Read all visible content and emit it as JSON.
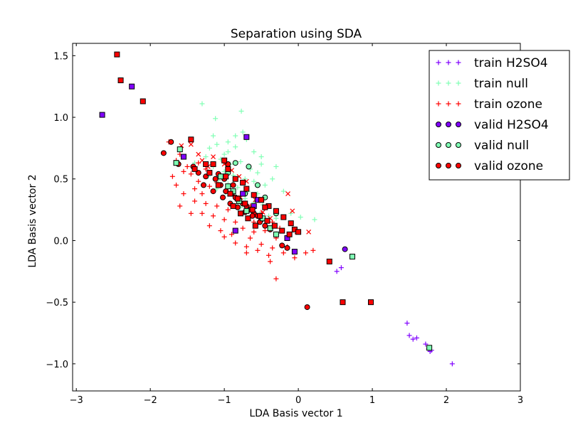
{
  "chart_data": {
    "type": "scatter",
    "title": "Separation using SDA",
    "xlabel": "LDA Basis vector 1",
    "ylabel": "LDA Basis vector 2",
    "xlim": [
      -3.05,
      3.0
    ],
    "ylim": [
      -1.22,
      1.6
    ],
    "xticks": [
      -3,
      -2,
      -1,
      0,
      1,
      2,
      3
    ],
    "xtick_labels": [
      "−3",
      "−2",
      "−1",
      "0",
      "1",
      "2",
      "3"
    ],
    "yticks": [
      -1.0,
      -0.5,
      0.0,
      0.5,
      1.0,
      1.5
    ],
    "ytick_labels": [
      "−1.0",
      "−0.5",
      "0.0",
      "0.5",
      "1.0",
      "1.5"
    ],
    "grid": false,
    "legend_position": "top-right",
    "colors": {
      "h2so4": "#8000ff",
      "null": "#80ffb4",
      "ozone": "#ff0000"
    },
    "series": [
      {
        "name": "train H2SO4",
        "group": "h2so4",
        "marker": "plus",
        "points": [
          [
            0.58,
            -0.22
          ],
          [
            0.52,
            -0.25
          ],
          [
            1.47,
            -0.67
          ],
          [
            1.5,
            -0.77
          ],
          [
            1.55,
            -0.8
          ],
          [
            1.6,
            -0.79
          ],
          [
            1.72,
            -0.84
          ],
          [
            1.76,
            -0.88
          ],
          [
            1.8,
            -0.89
          ],
          [
            1.78,
            -0.9
          ],
          [
            2.08,
            -1.0
          ]
        ]
      },
      {
        "name": "train null",
        "group": "null",
        "marker": "plus",
        "points": [
          [
            -1.3,
            1.11
          ],
          [
            -1.12,
            0.99
          ],
          [
            -0.77,
            1.05
          ],
          [
            -0.75,
            0.88
          ],
          [
            -1.2,
            0.75
          ],
          [
            -1.1,
            0.78
          ],
          [
            -0.95,
            0.72
          ],
          [
            -0.85,
            0.76
          ],
          [
            -0.6,
            0.72
          ],
          [
            -0.5,
            0.68
          ],
          [
            -1.25,
            0.68
          ],
          [
            -1.05,
            0.66
          ],
          [
            -0.92,
            0.62
          ],
          [
            -0.78,
            0.64
          ],
          [
            -0.65,
            0.58
          ],
          [
            -0.55,
            0.55
          ],
          [
            -1.15,
            0.6
          ],
          [
            -1.0,
            0.56
          ],
          [
            -0.88,
            0.53
          ],
          [
            -0.72,
            0.5
          ],
          [
            -0.6,
            0.48
          ],
          [
            -0.45,
            0.45
          ],
          [
            -1.22,
            0.52
          ],
          [
            -1.08,
            0.49
          ],
          [
            -0.95,
            0.46
          ],
          [
            -0.82,
            0.43
          ],
          [
            -0.68,
            0.4
          ],
          [
            -0.55,
            0.38
          ],
          [
            -1.1,
            0.42
          ],
          [
            -0.98,
            0.39
          ],
          [
            -0.85,
            0.36
          ],
          [
            -0.72,
            0.34
          ],
          [
            -0.6,
            0.31
          ],
          [
            -0.48,
            0.29
          ],
          [
            -0.9,
            0.3
          ],
          [
            -0.78,
            0.27
          ],
          [
            -0.65,
            0.25
          ],
          [
            -0.52,
            0.22
          ],
          [
            -0.4,
            0.2
          ],
          [
            -0.3,
            0.18
          ],
          [
            -0.3,
            0.6
          ],
          [
            -0.5,
            0.62
          ],
          [
            -0.35,
            0.5
          ],
          [
            -0.2,
            0.4
          ],
          [
            -0.1,
            0.22
          ],
          [
            0.03,
            0.19
          ],
          [
            0.22,
            0.17
          ],
          [
            -1.4,
            0.63
          ],
          [
            -1.35,
            0.55
          ],
          [
            -1.0,
            0.7
          ],
          [
            -0.7,
            0.82
          ],
          [
            -0.85,
            0.85
          ],
          [
            -1.15,
            0.85
          ],
          [
            -0.95,
            0.8
          ]
        ]
      },
      {
        "name": "train ozone",
        "group": "ozone",
        "marker": "plus",
        "points": [
          [
            -1.75,
            0.8
          ],
          [
            -1.6,
            0.7
          ],
          [
            -1.55,
            0.56
          ],
          [
            -1.45,
            0.54
          ],
          [
            -1.35,
            0.48
          ],
          [
            -1.7,
            0.52
          ],
          [
            -1.65,
            0.45
          ],
          [
            -1.4,
            0.42
          ],
          [
            -1.3,
            0.38
          ],
          [
            -1.2,
            0.44
          ],
          [
            -1.55,
            0.38
          ],
          [
            -1.4,
            0.32
          ],
          [
            -1.25,
            0.3
          ],
          [
            -1.1,
            0.28
          ],
          [
            -0.95,
            0.25
          ],
          [
            -1.6,
            0.28
          ],
          [
            -1.3,
            0.22
          ],
          [
            -1.15,
            0.2
          ],
          [
            -1.0,
            0.17
          ],
          [
            -0.85,
            0.15
          ],
          [
            -1.45,
            0.22
          ],
          [
            -1.2,
            0.12
          ],
          [
            -1.05,
            0.08
          ],
          [
            -0.9,
            0.05
          ],
          [
            -0.75,
            0.1
          ],
          [
            -1.0,
            0.03
          ],
          [
            -0.85,
            -0.02
          ],
          [
            -0.7,
            -0.05
          ],
          [
            -0.55,
            -0.08
          ],
          [
            -0.4,
            -0.12
          ],
          [
            -0.65,
            0.02
          ],
          [
            -0.5,
            -0.03
          ],
          [
            -0.35,
            -0.06
          ],
          [
            -0.2,
            -0.1
          ],
          [
            -0.05,
            -0.14
          ],
          [
            -0.38,
            -0.17
          ],
          [
            -0.3,
            -0.31
          ],
          [
            -0.15,
            -0.05
          ],
          [
            0.1,
            -0.1
          ],
          [
            0.2,
            -0.08
          ],
          [
            -0.7,
            -0.1
          ],
          [
            -0.6,
            0.07
          ],
          [
            -1.1,
            0.47
          ],
          [
            -0.95,
            0.4
          ],
          [
            -0.8,
            0.32
          ],
          [
            -0.65,
            0.28
          ],
          [
            -0.5,
            0.22
          ],
          [
            -0.35,
            0.15
          ],
          [
            -0.25,
            0.1
          ],
          [
            -0.12,
            0.04
          ],
          [
            -0.6,
            0.15
          ],
          [
            -0.45,
            0.08
          ],
          [
            -0.3,
            0.02
          ],
          [
            -1.35,
            0.63
          ],
          [
            -1.25,
            0.58
          ],
          [
            -1.5,
            0.6
          ],
          [
            -1.65,
            0.65
          ]
        ]
      },
      {
        "name": "valid H2SO4",
        "group": "h2so4",
        "marker": "circle",
        "points": [
          [
            0.63,
            -0.07
          ]
        ]
      },
      {
        "name": "valid null",
        "group": "null",
        "marker": "circle",
        "points": [
          [
            -0.85,
            0.63
          ],
          [
            -0.67,
            0.6
          ],
          [
            -0.55,
            0.45
          ],
          [
            -0.45,
            0.35
          ],
          [
            -0.3,
            0.22
          ],
          [
            -0.95,
            0.55
          ],
          [
            -0.72,
            0.38
          ]
        ]
      },
      {
        "name": "valid ozone",
        "group": "ozone",
        "marker": "circle",
        "points": [
          [
            -1.72,
            0.8
          ],
          [
            -1.82,
            0.71
          ],
          [
            -1.42,
            0.6
          ],
          [
            -1.35,
            0.55
          ],
          [
            -1.25,
            0.52
          ],
          [
            -1.12,
            0.5
          ],
          [
            -1.05,
            0.45
          ],
          [
            -0.98,
            0.4
          ],
          [
            -0.9,
            0.38
          ],
          [
            -0.85,
            0.35
          ],
          [
            -0.8,
            0.32
          ],
          [
            -0.75,
            0.3
          ],
          [
            -0.7,
            0.28
          ],
          [
            -0.65,
            0.25
          ],
          [
            -0.6,
            0.22
          ],
          [
            -0.55,
            0.2
          ],
          [
            -0.5,
            0.17
          ],
          [
            -1.28,
            0.45
          ],
          [
            -1.15,
            0.4
          ],
          [
            -1.02,
            0.35
          ],
          [
            -0.92,
            0.3
          ],
          [
            -0.82,
            0.27
          ],
          [
            -0.72,
            0.23
          ],
          [
            -0.62,
            0.2
          ],
          [
            -0.52,
            0.15
          ],
          [
            -0.45,
            0.12
          ],
          [
            -0.38,
            0.09
          ],
          [
            -0.3,
            0.05
          ],
          [
            -0.22,
            -0.04
          ],
          [
            -0.15,
            -0.06
          ],
          [
            -0.95,
            0.62
          ],
          [
            -1.08,
            0.54
          ],
          [
            0.12,
            -0.54
          ],
          [
            -1.62,
            0.62
          ],
          [
            -1.0,
            0.5
          ],
          [
            -0.88,
            0.45
          ]
        ]
      },
      {
        "name": "valid H2SO4 (square)",
        "group": "h2so4",
        "marker": "square",
        "legend": false,
        "points": [
          [
            -2.65,
            1.02
          ],
          [
            -2.25,
            1.25
          ],
          [
            -1.55,
            0.68
          ],
          [
            -0.7,
            0.84
          ],
          [
            -0.85,
            0.08
          ],
          [
            -0.55,
            0.33
          ],
          [
            -0.15,
            0.02
          ],
          [
            -0.05,
            -0.09
          ],
          [
            -0.75,
            0.38
          ],
          [
            -0.6,
            0.28
          ]
        ]
      },
      {
        "name": "valid null (square)",
        "group": "null",
        "marker": "square",
        "legend": false,
        "points": [
          [
            -1.6,
            0.74
          ],
          [
            -1.65,
            0.63
          ],
          [
            -0.95,
            0.44
          ],
          [
            -0.8,
            0.32
          ],
          [
            -0.7,
            0.24
          ],
          [
            -0.48,
            0.18
          ],
          [
            -0.38,
            0.1
          ],
          [
            -0.3,
            0.05
          ],
          [
            0.73,
            -0.13
          ],
          [
            1.77,
            -0.87
          ],
          [
            -1.05,
            0.52
          ],
          [
            -0.88,
            0.4
          ]
        ]
      },
      {
        "name": "valid ozone (square)",
        "group": "ozone",
        "marker": "square",
        "legend": false,
        "points": [
          [
            -2.45,
            1.51
          ],
          [
            -2.4,
            1.3
          ],
          [
            -2.1,
            1.13
          ],
          [
            -1.45,
            0.82
          ],
          [
            -1.0,
            0.65
          ],
          [
            -1.15,
            0.62
          ],
          [
            -0.95,
            0.58
          ],
          [
            -0.85,
            0.5
          ],
          [
            -0.75,
            0.47
          ],
          [
            -0.7,
            0.42
          ],
          [
            -0.6,
            0.37
          ],
          [
            -0.5,
            0.33
          ],
          [
            -0.4,
            0.28
          ],
          [
            -0.3,
            0.24
          ],
          [
            -0.2,
            0.19
          ],
          [
            -0.1,
            0.14
          ],
          [
            -0.05,
            0.09
          ],
          [
            -1.2,
            0.55
          ],
          [
            -1.08,
            0.45
          ],
          [
            -0.92,
            0.38
          ],
          [
            -0.82,
            0.34
          ],
          [
            -0.72,
            0.3
          ],
          [
            -0.62,
            0.25
          ],
          [
            -0.52,
            0.2
          ],
          [
            -0.42,
            0.16
          ],
          [
            -0.32,
            0.12
          ],
          [
            -0.22,
            0.08
          ],
          [
            -0.12,
            0.05
          ],
          [
            0.0,
            0.07
          ],
          [
            0.42,
            -0.17
          ],
          [
            0.6,
            -0.5
          ],
          [
            0.98,
            -0.5
          ],
          [
            -1.25,
            0.62
          ],
          [
            -1.4,
            0.58
          ],
          [
            -0.98,
            0.52
          ],
          [
            -0.88,
            0.28
          ],
          [
            -0.78,
            0.22
          ],
          [
            -0.68,
            0.18
          ],
          [
            -0.58,
            0.12
          ],
          [
            -0.45,
            0.27
          ]
        ]
      },
      {
        "name": "train ozone (x)",
        "group": "ozone",
        "marker": "x",
        "legend": false,
        "points": [
          [
            -1.45,
            0.78
          ],
          [
            -1.3,
            0.65
          ],
          [
            -1.15,
            0.68
          ],
          [
            -1.0,
            0.62
          ],
          [
            -0.9,
            0.57
          ],
          [
            -0.8,
            0.52
          ],
          [
            -0.7,
            0.48
          ],
          [
            -0.78,
            0.35
          ],
          [
            -0.58,
            0.33
          ],
          [
            -0.48,
            0.23
          ],
          [
            -0.38,
            0.18
          ],
          [
            -0.14,
            0.38
          ],
          [
            -0.08,
            0.24
          ],
          [
            0.14,
            0.07
          ],
          [
            -0.02,
            0.07
          ],
          [
            -1.22,
            0.6
          ],
          [
            -1.35,
            0.7
          ],
          [
            -1.58,
            0.77
          ]
        ]
      }
    ]
  }
}
